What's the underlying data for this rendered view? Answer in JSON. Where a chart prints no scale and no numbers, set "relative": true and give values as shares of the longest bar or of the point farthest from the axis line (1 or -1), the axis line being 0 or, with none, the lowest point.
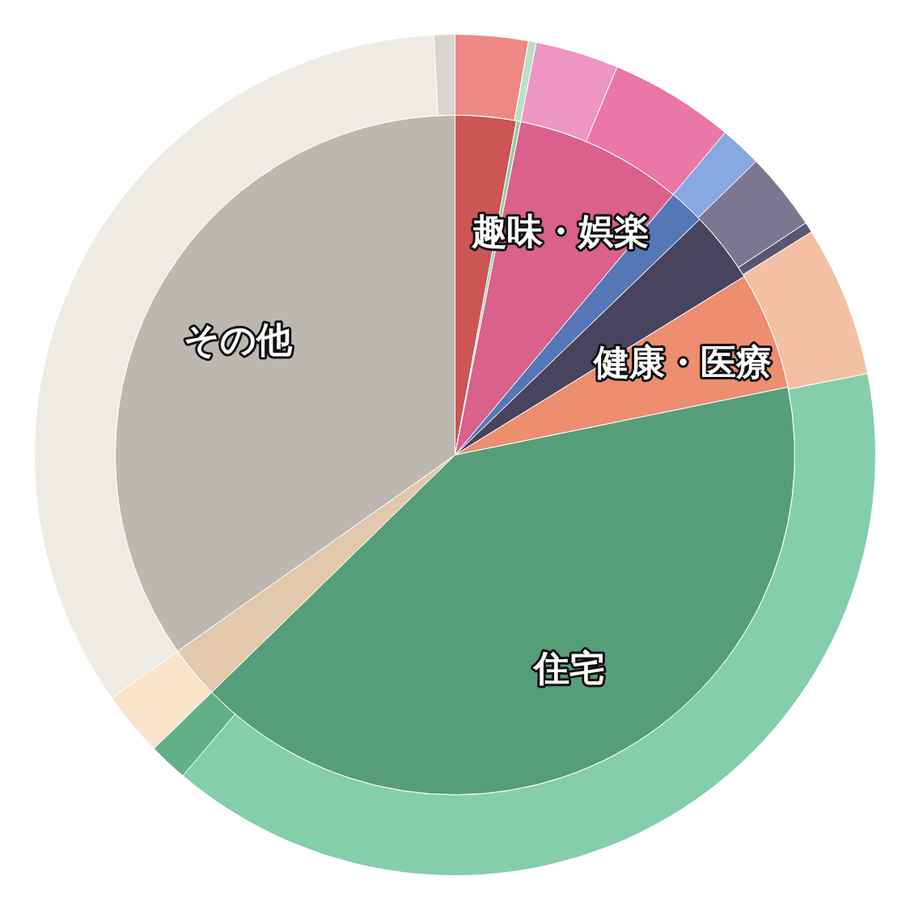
{
  "chart_data": [
    {
      "type": "donut",
      "relative": true,
      "legend": false,
      "categories": [
        null,
        null,
        null,
        null,
        null,
        null,
        null,
        null,
        null,
        null,
        null,
        null,
        null
      ],
      "values": [
        2.8,
        0.3,
        3.2,
        4.8,
        1.6,
        3.0,
        0.4,
        5.8,
        39.3,
        1.5,
        2.5,
        34.0,
        0.8
      ],
      "colors": [
        "#ee8884",
        "#b5e2c4",
        "#ee95c2",
        "#ea77a6",
        "#87a8e3",
        "#7b7791",
        "#5a5670",
        "#f4c0a3",
        "#84ceac",
        "#62b08a",
        "#f9e3c9",
        "#eeebe4",
        "#d8d5cf"
      ]
    },
    {
      "type": "pie",
      "relative": true,
      "legend": false,
      "categories": [
        null,
        null,
        "趣味・娯楽",
        null,
        null,
        "健康・医療",
        "住宅",
        null,
        "その他"
      ],
      "values": [
        2.9,
        0.2,
        8.0,
        1.7,
        3.4,
        5.6,
        40.9,
        2.5,
        34.8
      ],
      "colors": [
        "#cc5555",
        "#8fcf9f",
        "#d9618c",
        "#5577b8",
        "#48445e",
        "#ec8e6f",
        "#569e79",
        "#e2c9ad",
        "#bcb8b0"
      ]
    }
  ]
}
